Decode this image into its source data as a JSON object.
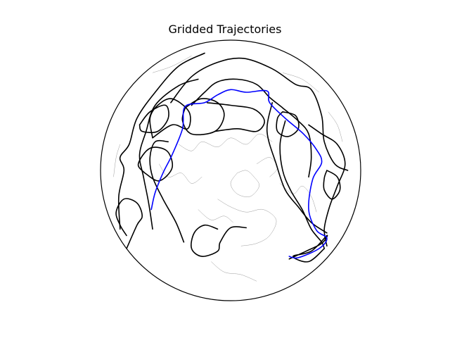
{
  "chart_data": {
    "type": "line",
    "title": "Gridded Trajectories",
    "projection": "orthographic",
    "map_center": "north-pole",
    "coastlines": true,
    "colors": {
      "highlight": "#0000ff",
      "trajectory": "#000000",
      "coastline": "#9a9a9a",
      "globe_edge": "#000000"
    },
    "series_note_visible": false,
    "series": [
      {
        "color": "#0000ff",
        "style": "highlight",
        "points": [
          [
            -0.61,
            0.3
          ],
          [
            -0.58,
            0.17
          ],
          [
            -0.52,
            0.02
          ],
          [
            -0.45,
            -0.12
          ],
          [
            -0.37,
            -0.32
          ],
          [
            -0.35,
            -0.49
          ],
          [
            -0.2,
            -0.52
          ],
          [
            -0.1,
            -0.58
          ],
          [
            0.0,
            -0.62
          ],
          [
            0.12,
            -0.6
          ],
          [
            0.28,
            -0.61
          ],
          [
            0.3,
            -0.52
          ],
          [
            0.42,
            -0.4
          ],
          [
            0.56,
            -0.28
          ],
          [
            0.66,
            -0.16
          ],
          [
            0.7,
            -0.06
          ],
          [
            0.63,
            0.07
          ],
          [
            0.6,
            0.3
          ],
          [
            0.66,
            0.46
          ],
          [
            0.74,
            0.52
          ],
          [
            0.68,
            0.6
          ],
          [
            0.52,
            0.67
          ],
          [
            0.45,
            0.66
          ]
        ]
      },
      {
        "color": "#000000",
        "style": "loop",
        "points": [
          [
            -0.66,
            0.02
          ],
          [
            -0.55,
            0.08
          ],
          [
            -0.45,
            -0.02
          ],
          [
            -0.49,
            -0.15
          ],
          [
            -0.62,
            -0.17
          ],
          [
            -0.71,
            -0.05
          ],
          [
            -0.66,
            0.02
          ]
        ]
      },
      {
        "color": "#000000",
        "style": "loop",
        "points": [
          [
            -0.6,
            -0.25
          ],
          [
            -0.45,
            -0.35
          ],
          [
            -0.33,
            -0.32
          ],
          [
            -0.32,
            -0.45
          ],
          [
            -0.45,
            -0.55
          ],
          [
            -0.56,
            -0.5
          ],
          [
            -0.62,
            -0.4
          ],
          [
            -0.6,
            -0.25
          ]
        ]
      },
      {
        "color": "#000000",
        "style": "loop",
        "points": [
          [
            -0.35,
            -0.48
          ],
          [
            -0.23,
            -0.55
          ],
          [
            -0.1,
            -0.52
          ],
          [
            -0.05,
            -0.42
          ],
          [
            -0.12,
            -0.3
          ],
          [
            -0.3,
            -0.28
          ],
          [
            -0.37,
            -0.38
          ],
          [
            -0.35,
            -0.48
          ]
        ]
      },
      {
        "color": "#000000",
        "style": "loop",
        "points": [
          [
            -0.18,
            -0.52
          ],
          [
            0.0,
            -0.5
          ],
          [
            0.18,
            -0.47
          ],
          [
            0.26,
            -0.38
          ],
          [
            0.2,
            -0.3
          ],
          [
            0.05,
            -0.32
          ],
          [
            -0.12,
            -0.3
          ]
        ]
      },
      {
        "color": "#000000",
        "style": "path",
        "points": [
          [
            -0.46,
            -0.52
          ],
          [
            -0.3,
            -0.72
          ],
          [
            -0.1,
            -0.83
          ],
          [
            0.1,
            -0.86
          ],
          [
            0.32,
            -0.78
          ],
          [
            0.5,
            -0.66
          ],
          [
            0.62,
            -0.62
          ],
          [
            0.7,
            -0.42
          ],
          [
            0.72,
            -0.22
          ],
          [
            0.8,
            -0.05
          ],
          [
            0.9,
            0.0
          ]
        ]
      },
      {
        "color": "#000000",
        "style": "path",
        "points": [
          [
            -0.6,
            0.45
          ],
          [
            -0.63,
            0.25
          ],
          [
            -0.67,
            0.05
          ],
          [
            -0.7,
            -0.12
          ],
          [
            -0.65,
            -0.3
          ],
          [
            -0.58,
            -0.5
          ],
          [
            -0.4,
            -0.65
          ],
          [
            -0.25,
            -0.7
          ]
        ]
      },
      {
        "color": "#000000",
        "style": "path",
        "points": [
          [
            -0.3,
            -0.5
          ],
          [
            -0.2,
            -0.6
          ],
          [
            -0.1,
            -0.68
          ],
          [
            0.05,
            -0.7
          ],
          [
            0.2,
            -0.66
          ],
          [
            0.3,
            -0.56
          ],
          [
            0.4,
            -0.48
          ],
          [
            0.52,
            -0.38
          ],
          [
            0.6,
            -0.28
          ],
          [
            0.62,
            -0.1
          ],
          [
            0.6,
            0.05
          ]
        ]
      },
      {
        "color": "#000000",
        "style": "loop",
        "points": [
          [
            0.4,
            -0.45
          ],
          [
            0.5,
            -0.42
          ],
          [
            0.52,
            -0.32
          ],
          [
            0.44,
            -0.26
          ],
          [
            0.36,
            -0.3
          ],
          [
            0.36,
            -0.4
          ],
          [
            0.4,
            -0.45
          ]
        ]
      },
      {
        "color": "#000000",
        "style": "path",
        "points": [
          [
            0.42,
            -0.38
          ],
          [
            0.38,
            -0.2
          ],
          [
            0.4,
            0.0
          ],
          [
            0.46,
            0.15
          ],
          [
            0.55,
            0.3
          ],
          [
            0.62,
            0.45
          ],
          [
            0.7,
            0.55
          ],
          [
            0.72,
            0.6
          ]
        ]
      },
      {
        "color": "#000000",
        "style": "path",
        "points": [
          [
            0.32,
            -0.52
          ],
          [
            0.28,
            -0.3
          ],
          [
            0.35,
            -0.05
          ],
          [
            0.42,
            0.15
          ],
          [
            0.52,
            0.28
          ],
          [
            0.62,
            0.4
          ],
          [
            0.74,
            0.48
          ]
        ]
      },
      {
        "color": "#000000",
        "style": "loop",
        "points": [
          [
            0.74,
            0.0
          ],
          [
            0.82,
            0.05
          ],
          [
            0.84,
            0.15
          ],
          [
            0.78,
            0.22
          ],
          [
            0.72,
            0.15
          ],
          [
            0.72,
            0.06
          ],
          [
            0.74,
            0.0
          ]
        ]
      },
      {
        "color": "#000000",
        "style": "path",
        "points": [
          [
            0.6,
            -0.35
          ],
          [
            0.7,
            -0.28
          ],
          [
            0.82,
            -0.2
          ],
          [
            0.88,
            -0.05
          ],
          [
            0.82,
            0.12
          ],
          [
            0.76,
            0.28
          ],
          [
            0.72,
            0.45
          ],
          [
            0.74,
            0.58
          ]
        ]
      },
      {
        "color": "#000000",
        "style": "path",
        "points": [
          [
            0.45,
            0.68
          ],
          [
            0.58,
            0.62
          ],
          [
            0.7,
            0.56
          ],
          [
            0.74,
            0.5
          ],
          [
            0.62,
            0.62
          ],
          [
            0.48,
            0.66
          ],
          [
            0.6,
            0.7
          ],
          [
            0.72,
            0.6
          ]
        ]
      },
      {
        "color": "#000000",
        "style": "loop",
        "points": [
          [
            -0.8,
            0.6
          ],
          [
            -0.72,
            0.42
          ],
          [
            -0.68,
            0.35
          ],
          [
            -0.72,
            0.25
          ],
          [
            -0.82,
            0.22
          ],
          [
            -0.88,
            0.32
          ],
          [
            -0.85,
            0.42
          ],
          [
            -0.8,
            0.5
          ]
        ]
      },
      {
        "color": "#000000",
        "style": "path",
        "points": [
          [
            -0.85,
            0.45
          ],
          [
            -0.86,
            0.2
          ],
          [
            -0.82,
            0.0
          ],
          [
            -0.85,
            -0.1
          ],
          [
            -0.78,
            -0.2
          ],
          [
            -0.72,
            -0.4
          ],
          [
            -0.58,
            -0.6
          ],
          [
            -0.4,
            -0.8
          ],
          [
            -0.2,
            -0.9
          ]
        ]
      },
      {
        "color": "#000000",
        "style": "loop",
        "points": [
          [
            -0.1,
            0.45
          ],
          [
            -0.2,
            0.42
          ],
          [
            -0.28,
            0.48
          ],
          [
            -0.3,
            0.6
          ],
          [
            -0.22,
            0.66
          ],
          [
            -0.1,
            0.62
          ],
          [
            -0.08,
            0.55
          ],
          [
            0.0,
            0.44
          ],
          [
            0.12,
            0.44
          ]
        ]
      },
      {
        "color": "#000000",
        "style": "path",
        "points": [
          [
            -0.36,
            0.55
          ],
          [
            -0.42,
            0.4
          ],
          [
            -0.52,
            0.22
          ],
          [
            -0.6,
            0.05
          ],
          [
            -0.62,
            -0.1
          ],
          [
            -0.58,
            -0.22
          ],
          [
            -0.48,
            -0.22
          ]
        ]
      },
      {
        "color": "#000000",
        "style": "loop",
        "points": [
          [
            -0.7,
            -0.35
          ],
          [
            -0.62,
            -0.45
          ],
          [
            -0.5,
            -0.5
          ],
          [
            -0.48,
            -0.4
          ],
          [
            -0.56,
            -0.3
          ],
          [
            -0.68,
            -0.3
          ],
          [
            -0.7,
            -0.35
          ]
        ]
      }
    ]
  }
}
